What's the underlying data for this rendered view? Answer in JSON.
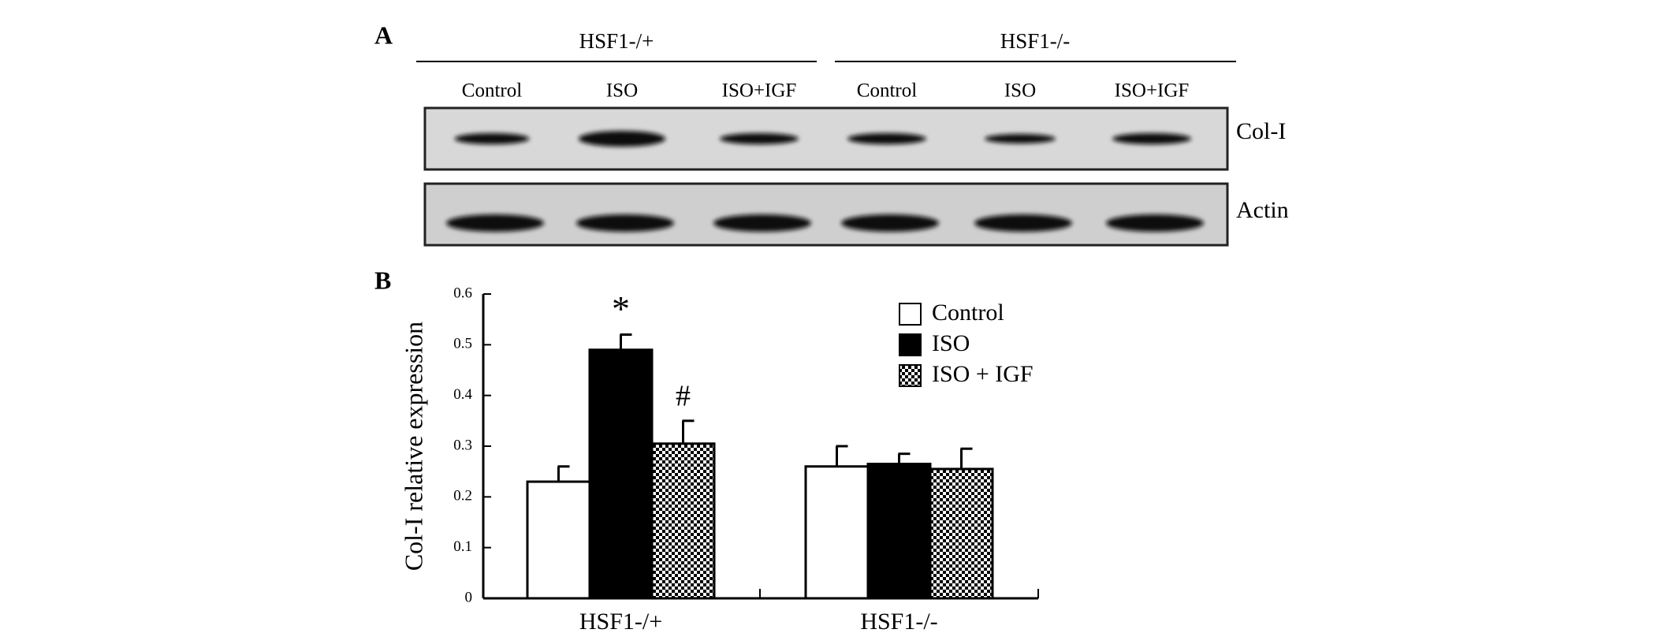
{
  "panel_a": {
    "label": "A",
    "groups": [
      "HSF1-/+",
      "HSF1-/-"
    ],
    "lanes": [
      "Control",
      "ISO",
      "ISO+IGF",
      "Control",
      "ISO",
      "ISO+IGF"
    ],
    "blots": [
      "Col-I",
      "Actin"
    ]
  },
  "chart_data": {
    "type": "bar",
    "panel_label": "B",
    "y_label": "Col-I relative expression",
    "categories": [
      "HSF1-/+",
      "HSF1-/-"
    ],
    "series": [
      {
        "name": "Control",
        "color": "#ffffff",
        "values": [
          0.23,
          0.26
        ],
        "errors": [
          0.03,
          0.04
        ]
      },
      {
        "name": "ISO",
        "color": "#000000",
        "values": [
          0.49,
          0.265
        ],
        "errors": [
          0.03,
          0.02
        ]
      },
      {
        "name": "ISO + IGF",
        "color": "#000000",
        "hatch": "checker",
        "values": [
          0.305,
          0.255
        ],
        "errors": [
          0.045,
          0.04
        ]
      }
    ],
    "annotations": [
      "*",
      "#"
    ],
    "ylim": [
      0,
      0.6
    ],
    "yticks": [
      0,
      0.1,
      0.2,
      0.3,
      0.4,
      0.5,
      0.6
    ],
    "grid": false,
    "legend": "upper right"
  }
}
